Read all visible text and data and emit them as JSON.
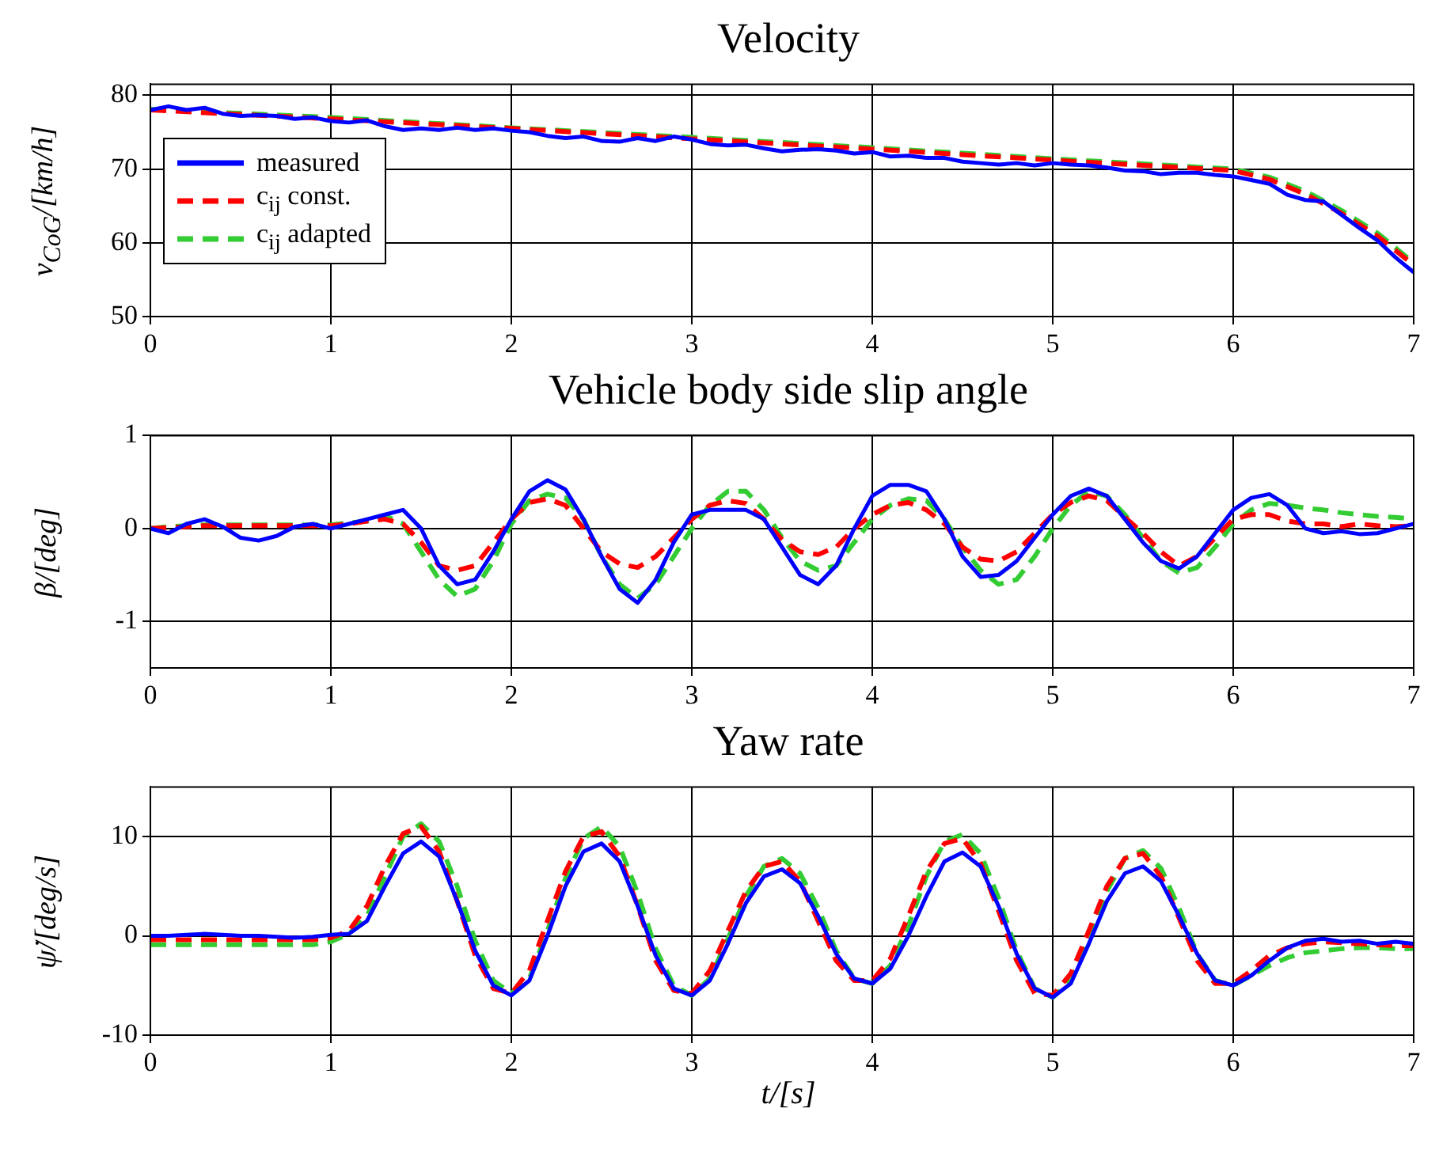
{
  "chart_data": [
    {
      "type": "line",
      "title": "Velocity",
      "ylabel": "v$_{CoG}$/[km/h]",
      "x": [
        0,
        0.1,
        0.2,
        0.3,
        0.4,
        0.5,
        0.6,
        0.7,
        0.8,
        0.9,
        1,
        1.1,
        1.2,
        1.3,
        1.4,
        1.5,
        1.6,
        1.7,
        1.8,
        1.9,
        2,
        2.1,
        2.2,
        2.3,
        2.4,
        2.5,
        2.6,
        2.7,
        2.8,
        2.9,
        3,
        3.1,
        3.2,
        3.3,
        3.4,
        3.5,
        3.6,
        3.7,
        3.8,
        3.9,
        4,
        4.1,
        4.2,
        4.3,
        4.4,
        4.5,
        4.6,
        4.7,
        4.8,
        4.9,
        5,
        5.1,
        5.2,
        5.3,
        5.4,
        5.5,
        5.6,
        5.7,
        5.8,
        5.9,
        6,
        6.1,
        6.2,
        6.3,
        6.4,
        6.5,
        6.6,
        6.7,
        6.8,
        6.9,
        7
      ],
      "xlim": [
        0,
        7
      ],
      "xticks": [
        0,
        1,
        2,
        3,
        4,
        5,
        6,
        7
      ],
      "ylim": [
        50,
        81.5
      ],
      "yticks": [
        50,
        60,
        70,
        80
      ],
      "grid": true,
      "legend": "left",
      "marker": "none",
      "series": [
        {
          "name": "measured",
          "color": "#0000ff",
          "line_style": "solid",
          "values": [
            78,
            78.5,
            78,
            78.3,
            77.5,
            77.2,
            77.3,
            77.2,
            76.8,
            77,
            76.5,
            76.3,
            76.6,
            75.8,
            75.3,
            75.5,
            75.3,
            75.6,
            75.3,
            75.5,
            75.2,
            75,
            74.5,
            74.2,
            74.4,
            73.8,
            73.7,
            74.2,
            73.8,
            74.4,
            74,
            73.4,
            73.2,
            73.3,
            72.8,
            72.4,
            72.6,
            72.7,
            72.5,
            72.1,
            72.3,
            71.7,
            71.8,
            71.5,
            71.5,
            71,
            70.8,
            70.6,
            70.8,
            70.5,
            70.8,
            70.6,
            70.5,
            70.2,
            69.8,
            69.7,
            69.3,
            69.5,
            69.5,
            69.2,
            69,
            68.5,
            68,
            66.5,
            65.8,
            65.6,
            63.8,
            62,
            60.3,
            58,
            56
          ]
        },
        {
          "name": "c$_{ij}$ const.",
          "color": "#ff0000",
          "line_style": "dashed",
          "x": [
            0,
            1,
            2,
            3,
            4,
            5,
            5.5,
            6,
            6.2,
            6.4,
            6.6,
            6.8,
            7
          ],
          "values": [
            78,
            76.8,
            75.5,
            74.1,
            72.7,
            71.2,
            70.5,
            69.8,
            68.6,
            66.6,
            64,
            60.9,
            57
          ]
        },
        {
          "name": "c$_{ij}$ adapted",
          "color": "#33cc33",
          "line_style": "dashed",
          "x": [
            0,
            1,
            2,
            3,
            4,
            5,
            5.5,
            6,
            6.2,
            6.4,
            6.6,
            6.8,
            7
          ],
          "values": [
            78.1,
            77,
            75.6,
            74.3,
            72.9,
            71.4,
            70.7,
            70,
            68.9,
            67,
            64.4,
            61.3,
            57.3
          ]
        }
      ]
    },
    {
      "type": "line",
      "title": "Vehicle body side slip angle",
      "ylabel": "β/[deg]",
      "x": [
        0,
        0.1,
        0.2,
        0.3,
        0.4,
        0.5,
        0.6,
        0.7,
        0.8,
        0.9,
        1,
        1.1,
        1.2,
        1.3,
        1.4,
        1.5,
        1.6,
        1.7,
        1.8,
        1.9,
        2,
        2.1,
        2.2,
        2.3,
        2.4,
        2.5,
        2.6,
        2.7,
        2.8,
        2.9,
        3,
        3.1,
        3.2,
        3.3,
        3.4,
        3.5,
        3.6,
        3.7,
        3.8,
        3.9,
        4,
        4.1,
        4.2,
        4.3,
        4.4,
        4.5,
        4.6,
        4.7,
        4.8,
        4.9,
        5,
        5.1,
        5.2,
        5.3,
        5.4,
        5.5,
        5.6,
        5.7,
        5.8,
        5.9,
        6,
        6.1,
        6.2,
        6.3,
        6.4,
        6.5,
        6.6,
        6.7,
        6.8,
        6.9,
        7
      ],
      "xlim": [
        0,
        7
      ],
      "xticks": [
        0,
        1,
        2,
        3,
        4,
        5,
        6,
        7
      ],
      "ylim": [
        -1.5,
        1
      ],
      "yticks": [
        -1,
        0,
        1
      ],
      "grid": true,
      "marker": "none",
      "series": [
        {
          "color": "#0000ff",
          "line_style": "solid",
          "values": [
            0,
            -0.05,
            0.05,
            0.1,
            0.02,
            -0.1,
            -0.13,
            -0.08,
            0.02,
            0.05,
            0,
            0.05,
            0.1,
            0.15,
            0.2,
            0,
            -0.4,
            -0.6,
            -0.55,
            -0.25,
            0.1,
            0.4,
            0.52,
            0.42,
            0.1,
            -0.3,
            -0.65,
            -0.8,
            -0.55,
            -0.15,
            0.15,
            0.2,
            0.2,
            0.2,
            0.1,
            -0.2,
            -0.5,
            -0.6,
            -0.4,
            0,
            0.35,
            0.47,
            0.47,
            0.4,
            0.1,
            -0.3,
            -0.52,
            -0.5,
            -0.35,
            -0.1,
            0.15,
            0.35,
            0.43,
            0.35,
            0.1,
            -0.15,
            -0.35,
            -0.43,
            -0.3,
            -0.05,
            0.2,
            0.33,
            0.37,
            0.25,
            0,
            -0.05,
            -0.03,
            -0.06,
            -0.05,
            0,
            0.05
          ]
        },
        {
          "color": "#ff0000",
          "line_style": "dashed",
          "values": [
            0,
            0.01,
            0.02,
            0.03,
            0.03,
            0.03,
            0.03,
            0.03,
            0.03,
            0.03,
            0.03,
            0.05,
            0.08,
            0.1,
            0.05,
            -0.15,
            -0.4,
            -0.45,
            -0.4,
            -0.15,
            0.1,
            0.28,
            0.32,
            0.25,
            0,
            -0.25,
            -0.38,
            -0.42,
            -0.3,
            -0.1,
            0.1,
            0.25,
            0.3,
            0.27,
            0.1,
            -0.12,
            -0.25,
            -0.28,
            -0.2,
            0,
            0.15,
            0.25,
            0.28,
            0.2,
            0.05,
            -0.2,
            -0.33,
            -0.35,
            -0.25,
            -0.05,
            0.15,
            0.28,
            0.35,
            0.3,
            0.12,
            -0.05,
            -0.25,
            -0.4,
            -0.3,
            -0.1,
            0.1,
            0.15,
            0.15,
            0.08,
            0.05,
            0.05,
            0.02,
            0.05,
            0.03,
            0.02,
            0.03
          ]
        },
        {
          "color": "#33cc33",
          "line_style": "dashed",
          "values": [
            0,
            0.02,
            0.03,
            0.04,
            0.04,
            0.04,
            0.04,
            0.04,
            0.04,
            0.04,
            0.04,
            0.06,
            0.08,
            0.14,
            0.05,
            -0.25,
            -0.55,
            -0.73,
            -0.65,
            -0.35,
            0.05,
            0.3,
            0.37,
            0.33,
            0.1,
            -0.3,
            -0.6,
            -0.75,
            -0.6,
            -0.3,
            0,
            0.25,
            0.4,
            0.4,
            0.2,
            -0.1,
            -0.35,
            -0.45,
            -0.4,
            -0.15,
            0.1,
            0.25,
            0.32,
            0.3,
            0.1,
            -0.2,
            -0.45,
            -0.6,
            -0.55,
            -0.3,
            0,
            0.25,
            0.4,
            0.35,
            0.15,
            -0.1,
            -0.35,
            -0.48,
            -0.42,
            -0.2,
            0.05,
            0.2,
            0.27,
            0.25,
            0.22,
            0.2,
            0.17,
            0.15,
            0.13,
            0.12,
            0.1
          ]
        }
      ]
    },
    {
      "type": "line",
      "title": "Yaw rate",
      "ylabel": "ψ̇/[deg/s]",
      "xlabel": "t/[s]",
      "x": [
        0,
        0.1,
        0.2,
        0.3,
        0.4,
        0.5,
        0.6,
        0.7,
        0.8,
        0.9,
        1,
        1.1,
        1.2,
        1.3,
        1.4,
        1.5,
        1.6,
        1.7,
        1.8,
        1.9,
        2,
        2.1,
        2.2,
        2.3,
        2.4,
        2.5,
        2.6,
        2.7,
        2.8,
        2.9,
        3,
        3.1,
        3.2,
        3.3,
        3.4,
        3.5,
        3.6,
        3.7,
        3.8,
        3.9,
        4,
        4.1,
        4.2,
        4.3,
        4.4,
        4.5,
        4.6,
        4.7,
        4.8,
        4.9,
        5,
        5.1,
        5.2,
        5.3,
        5.4,
        5.5,
        5.6,
        5.7,
        5.8,
        5.9,
        6,
        6.1,
        6.2,
        6.3,
        6.4,
        6.5,
        6.6,
        6.7,
        6.8,
        6.9,
        7
      ],
      "xlim": [
        0,
        7
      ],
      "xticks": [
        0,
        1,
        2,
        3,
        4,
        5,
        6,
        7
      ],
      "ylim": [
        -10,
        15
      ],
      "yticks": [
        -10,
        0,
        10
      ],
      "grid": true,
      "marker": "none",
      "series": [
        {
          "color": "#0000ff",
          "line_style": "solid",
          "values": [
            0,
            0,
            0.1,
            0.2,
            0.1,
            0,
            0,
            -0.1,
            -0.2,
            -0.1,
            0.1,
            0.2,
            1.5,
            5,
            8.3,
            9.5,
            8,
            3.5,
            -1.5,
            -5,
            -6,
            -4.5,
            0,
            5,
            8.5,
            9.3,
            7.5,
            3,
            -2,
            -5.3,
            -6,
            -4.5,
            -0.8,
            3.3,
            6,
            6.7,
            5.3,
            2,
            -1.8,
            -4.3,
            -4.8,
            -3.3,
            0,
            4,
            7.5,
            8.4,
            7,
            3,
            -1.8,
            -5.3,
            -6.2,
            -4.8,
            -0.8,
            3.5,
            6.3,
            7,
            5.5,
            2,
            -1.8,
            -4.5,
            -5,
            -4,
            -2.5,
            -1.2,
            -0.5,
            -0.3,
            -0.6,
            -0.5,
            -0.8,
            -0.6,
            -0.8
          ]
        },
        {
          "color": "#ff0000",
          "line_style": "dashed",
          "values": [
            -0.4,
            -0.4,
            -0.4,
            -0.4,
            -0.4,
            -0.4,
            -0.4,
            -0.4,
            -0.4,
            -0.4,
            -0.2,
            0.5,
            3,
            7,
            10.3,
            11,
            8.5,
            3.5,
            -2,
            -5.3,
            -5.8,
            -3.5,
            1.5,
            6.5,
            10,
            10.5,
            8,
            3,
            -2.5,
            -5.5,
            -5.8,
            -3.5,
            0.5,
            4.5,
            7,
            7.5,
            5.5,
            1.5,
            -2.5,
            -4.5,
            -4.5,
            -2.3,
            2,
            6.5,
            9.3,
            9.8,
            7.3,
            2.5,
            -2.5,
            -5.8,
            -6,
            -3.8,
            0.5,
            5,
            7.8,
            8.3,
            6,
            1.8,
            -2.5,
            -4.8,
            -4.8,
            -3.5,
            -2,
            -1.2,
            -0.8,
            -0.6,
            -0.7,
            -0.8,
            -0.9,
            -1,
            -1
          ]
        },
        {
          "color": "#33cc33",
          "line_style": "dashed",
          "values": [
            -0.9,
            -0.9,
            -0.9,
            -0.9,
            -0.9,
            -0.9,
            -0.9,
            -0.9,
            -0.9,
            -0.9,
            -0.6,
            0.2,
            2,
            6,
            10,
            11.3,
            9.5,
            5,
            -0.5,
            -4.5,
            -5.8,
            -4.3,
            0.5,
            5.8,
            9.8,
            11,
            9,
            4.3,
            -1.3,
            -5,
            -6,
            -4.3,
            -0.3,
            4,
            7,
            7.8,
            6.3,
            2.8,
            -1.5,
            -4.3,
            -4.8,
            -3,
            1,
            6,
            9.5,
            10.2,
            8.3,
            3.8,
            -1.5,
            -5.3,
            -6.2,
            -4.5,
            -0.3,
            4.5,
            7.8,
            8.6,
            6.8,
            2.8,
            -1.8,
            -4.5,
            -5,
            -4,
            -3,
            -2.2,
            -1.7,
            -1.5,
            -1.3,
            -1.2,
            -1.2,
            -1.3,
            -1.3
          ]
        }
      ]
    }
  ]
}
